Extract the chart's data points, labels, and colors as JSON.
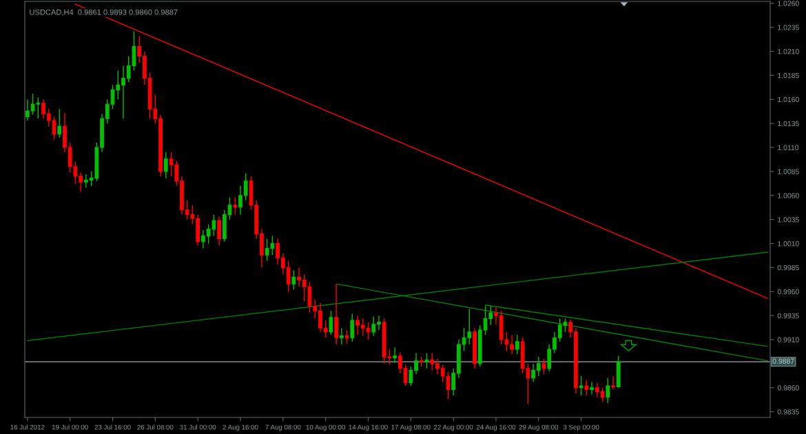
{
  "chart_data": {
    "type": "candlestick",
    "title": "USDCAD,H4  0.9861 0.9893 0.9860 0.9887",
    "categories": [
      "16 Jul 2012",
      null,
      null,
      null,
      null,
      null,
      null,
      null,
      "19 Jul 00:00",
      null,
      null,
      null,
      null,
      null,
      null,
      null,
      "23 Jul 16:00",
      null,
      null,
      null,
      null,
      null,
      null,
      null,
      "26 Jul 08:00",
      null,
      null,
      null,
      null,
      null,
      null,
      null,
      "31 Jul 00:00",
      null,
      null,
      null,
      null,
      null,
      null,
      null,
      "2 Aug 16:00",
      null,
      null,
      null,
      null,
      null,
      null,
      null,
      "7 Aug 08:00",
      null,
      null,
      null,
      null,
      null,
      null,
      null,
      "10 Aug 00:00",
      null,
      null,
      null,
      null,
      null,
      null,
      null,
      "14 Aug 16:00",
      null,
      null,
      null,
      null,
      null,
      null,
      null,
      "17 Aug 08:00",
      null,
      null,
      null,
      null,
      null,
      null,
      null,
      "22 Aug 00:00",
      null,
      null,
      null,
      null,
      null,
      null,
      null,
      "24 Aug 16:00",
      null,
      null,
      null,
      null,
      null,
      null,
      null,
      "29 Aug 08:00",
      null,
      null,
      null,
      null,
      null,
      null,
      null,
      "3 Sep 00:00",
      null,
      null,
      null,
      null,
      null,
      null,
      null,
      null,
      null,
      null,
      null,
      null,
      null,
      null,
      null,
      null,
      null,
      null,
      null,
      null,
      null,
      null,
      null,
      null,
      null,
      null,
      null,
      null,
      null,
      null,
      null,
      null,
      null,
      null,
      null
    ],
    "ohlc": [
      [
        1.0142,
        1.016,
        1.0138,
        1.0148
      ],
      [
        1.0148,
        1.0166,
        1.0144,
        1.0155
      ],
      [
        1.0155,
        1.0162,
        1.014,
        1.0156
      ],
      [
        1.0156,
        1.016,
        1.014,
        1.0145
      ],
      [
        1.0145,
        1.015,
        1.0132,
        1.0138
      ],
      [
        1.0138,
        1.0142,
        1.0118,
        1.0124
      ],
      [
        1.0124,
        1.015,
        1.012,
        1.0132
      ],
      [
        1.0132,
        1.0146,
        1.0105,
        1.011
      ],
      [
        1.011,
        1.0115,
        1.0084,
        1.009
      ],
      [
        1.009,
        1.0095,
        1.0072,
        1.008
      ],
      [
        1.008,
        1.0084,
        1.0064,
        1.0074
      ],
      [
        1.0074,
        1.0082,
        1.0068,
        1.0076
      ],
      [
        1.0076,
        1.0085,
        1.007,
        1.0078
      ],
      [
        1.0078,
        1.0115,
        1.0075,
        1.011
      ],
      [
        1.011,
        1.0145,
        1.0105,
        1.014
      ],
      [
        1.014,
        1.016,
        1.0135,
        1.0155
      ],
      [
        1.0155,
        1.0175,
        1.015,
        1.017
      ],
      [
        1.017,
        1.019,
        1.016,
        1.0175
      ],
      [
        1.0175,
        1.0195,
        1.014,
        1.0182
      ],
      [
        1.0182,
        1.0205,
        1.0178,
        1.0195
      ],
      [
        1.0195,
        1.0231,
        1.019,
        1.0215
      ],
      [
        1.0215,
        1.0226,
        1.0198,
        1.0205
      ],
      [
        1.0205,
        1.021,
        1.0175,
        1.0182
      ],
      [
        1.0182,
        1.0188,
        1.014,
        1.015
      ],
      [
        1.015,
        1.0165,
        1.0135,
        1.014
      ],
      [
        1.014,
        1.0144,
        1.008,
        1.0085
      ],
      [
        1.0085,
        1.0105,
        1.0078,
        1.0098
      ],
      [
        1.0098,
        1.0105,
        1.008,
        1.0092
      ],
      [
        1.0092,
        1.0096,
        1.007,
        1.0075
      ],
      [
        1.0075,
        1.008,
        1.004,
        1.0045
      ],
      [
        1.0045,
        1.0055,
        1.0035,
        1.004
      ],
      [
        1.004,
        1.005,
        1.003,
        1.0036
      ],
      [
        1.0036,
        1.004,
        1.0008,
        1.0012
      ],
      [
        1.0012,
        1.0024,
        1.0005,
        1.0018
      ],
      [
        1.0018,
        1.003,
        1.001,
        1.0025
      ],
      [
        1.0025,
        1.004,
        1.0018,
        1.0034
      ],
      [
        1.0034,
        1.0038,
        1.0008,
        1.0015
      ],
      [
        1.0015,
        1.0045,
        1.0012,
        1.004
      ],
      [
        1.004,
        1.0058,
        1.0035,
        1.005
      ],
      [
        1.005,
        1.0058,
        1.004,
        1.0048
      ],
      [
        1.0048,
        1.007,
        1.004,
        1.006
      ],
      [
        1.006,
        1.0083,
        1.0055,
        1.0075
      ],
      [
        1.0075,
        1.008,
        1.0045,
        1.005
      ],
      [
        1.005,
        1.0055,
        1.0015,
        1.002
      ],
      [
        1.002,
        1.0025,
        0.9985,
        0.9998
      ],
      [
        0.9998,
        1.0015,
        0.9992,
        1.0005
      ],
      [
        1.0005,
        1.0018,
        0.9998,
        1.001
      ],
      [
        1.001,
        1.0015,
        0.9988,
        0.9995
      ],
      [
        0.9995,
        1.0,
        0.9978,
        0.9985
      ],
      [
        0.9985,
        0.9992,
        0.996,
        0.9968
      ],
      [
        0.9968,
        0.9982,
        0.9962,
        0.9975
      ],
      [
        0.9975,
        0.9985,
        0.9965,
        0.9972
      ],
      [
        0.9972,
        0.9978,
        0.995,
        0.9965
      ],
      [
        0.9965,
        0.997,
        0.9938,
        0.9945
      ],
      [
        0.9945,
        0.9952,
        0.9932,
        0.994
      ],
      [
        0.994,
        0.9948,
        0.9918,
        0.9922
      ],
      [
        0.9922,
        0.993,
        0.9912,
        0.9918
      ],
      [
        0.9918,
        0.994,
        0.9915,
        0.9933
      ],
      [
        0.9933,
        0.9968,
        0.9905,
        0.9912
      ],
      [
        0.9912,
        0.9922,
        0.9905,
        0.9914
      ],
      [
        0.9914,
        0.992,
        0.9906,
        0.9912
      ],
      [
        0.9912,
        0.9937,
        0.9908,
        0.993
      ],
      [
        0.993,
        0.9935,
        0.9915,
        0.9925
      ],
      [
        0.9925,
        0.9932,
        0.9914,
        0.9922
      ],
      [
        0.9922,
        0.9928,
        0.991,
        0.9918
      ],
      [
        0.9918,
        0.9934,
        0.9914,
        0.9926
      ],
      [
        0.9926,
        0.9935,
        0.992,
        0.9928
      ],
      [
        0.9928,
        0.9932,
        0.9885,
        0.9892
      ],
      [
        0.9892,
        0.99,
        0.9884,
        0.9891
      ],
      [
        0.9891,
        0.9902,
        0.9886,
        0.9893
      ],
      [
        0.9893,
        0.9897,
        0.9875,
        0.988
      ],
      [
        0.988,
        0.9884,
        0.9862,
        0.9865
      ],
      [
        0.9865,
        0.9882,
        0.9862,
        0.9878
      ],
      [
        0.9878,
        0.9896,
        0.9874,
        0.9888
      ],
      [
        0.9888,
        0.9892,
        0.9882,
        0.9887
      ],
      [
        0.9887,
        0.9896,
        0.988,
        0.9889
      ],
      [
        0.9889,
        0.9896,
        0.9878,
        0.9885
      ],
      [
        0.9885,
        0.989,
        0.9874,
        0.988
      ],
      [
        0.988,
        0.9884,
        0.9866,
        0.9872
      ],
      [
        0.9872,
        0.9876,
        0.9848,
        0.9858
      ],
      [
        0.9858,
        0.988,
        0.9852,
        0.9875
      ],
      [
        0.9875,
        0.991,
        0.987,
        0.9905
      ],
      [
        0.9905,
        0.9922,
        0.9898,
        0.9912
      ],
      [
        0.9912,
        0.9942,
        0.9905,
        0.9918
      ],
      [
        0.9918,
        0.9922,
        0.988,
        0.9885
      ],
      [
        0.9885,
        0.9925,
        0.9882,
        0.992
      ],
      [
        0.992,
        0.9945,
        0.9915,
        0.9932
      ],
      [
        0.9932,
        0.9945,
        0.9925,
        0.9938
      ],
      [
        0.9938,
        0.9944,
        0.9926,
        0.9935
      ],
      [
        0.9935,
        0.994,
        0.9905,
        0.991
      ],
      [
        0.991,
        0.9918,
        0.9898,
        0.9905
      ],
      [
        0.9905,
        0.9915,
        0.9895,
        0.99
      ],
      [
        0.99,
        0.9915,
        0.9895,
        0.9908
      ],
      [
        0.9908,
        0.9912,
        0.9875,
        0.988
      ],
      [
        0.988,
        0.9885,
        0.9843,
        0.987
      ],
      [
        0.987,
        0.9885,
        0.9866,
        0.9878
      ],
      [
        0.9878,
        0.9892,
        0.9872,
        0.9885
      ],
      [
        0.9885,
        0.989,
        0.9874,
        0.988
      ],
      [
        0.988,
        0.9905,
        0.9877,
        0.99
      ],
      [
        0.99,
        0.9918,
        0.9896,
        0.9912
      ],
      [
        0.9912,
        0.9932,
        0.9908,
        0.9925
      ],
      [
        0.9925,
        0.9932,
        0.9918,
        0.9928
      ],
      [
        0.9928,
        0.9931,
        0.9912,
        0.9918
      ],
      [
        0.9918,
        0.9922,
        0.9854,
        0.986
      ],
      [
        0.986,
        0.9872,
        0.9852,
        0.9862
      ],
      [
        0.9862,
        0.9868,
        0.9852,
        0.9858
      ],
      [
        0.9858,
        0.9866,
        0.9853,
        0.986
      ],
      [
        0.986,
        0.9865,
        0.985,
        0.9856
      ],
      [
        0.9856,
        0.986,
        0.9845,
        0.985
      ],
      [
        0.985,
        0.987,
        0.9844,
        0.9862
      ],
      [
        0.9862,
        0.9872,
        0.9858,
        0.9861
      ],
      [
        0.9861,
        0.9893,
        0.986,
        0.9887
      ],
      null,
      null,
      null,
      null,
      null,
      null,
      null,
      null,
      null,
      null,
      null,
      null,
      null,
      null,
      null,
      null,
      null,
      null,
      null,
      null,
      null,
      null,
      null,
      null,
      null,
      null,
      null,
      null
    ],
    "colors": [
      "#00c000",
      "#00c000",
      "#00c000",
      "#ff0000",
      "#ff0000",
      "#ff0000",
      "#00c000",
      "#ff0000",
      "#ff0000",
      "#ff0000",
      "#ff0000",
      "#00c000",
      "#00c000",
      "#00c000",
      "#00c000",
      "#00c000",
      "#00c000",
      "#00c000",
      "#00c000",
      "#00c000",
      "#00c000",
      "#ff0000",
      "#ff0000",
      "#ff0000",
      "#ff0000",
      "#ff0000",
      "#00c000",
      "#ff0000",
      "#ff0000",
      "#ff0000",
      "#ff0000",
      "#ff0000",
      "#ff0000",
      "#00c000",
      "#00c000",
      "#00c000",
      "#ff0000",
      "#00c000",
      "#00c000",
      "#ff0000",
      "#00c000",
      "#00c000",
      "#ff0000",
      "#ff0000",
      "#ff0000",
      "#00c000",
      "#00c000",
      "#ff0000",
      "#ff0000",
      "#ff0000",
      "#00c000",
      "#ff0000",
      "#ff0000",
      "#ff0000",
      "#ff0000",
      "#ff0000",
      "#ff0000",
      "#00c000",
      "#ff0000",
      "#00c000",
      "#ff0000",
      "#00c000",
      "#ff0000",
      "#ff0000",
      "#ff0000",
      "#00c000",
      "#00c000",
      "#ff0000",
      "#ff0000",
      "#00c000",
      "#ff0000",
      "#ff0000",
      "#00c000",
      "#00c000",
      "#ff0000",
      "#00c000",
      "#ff0000",
      "#ff0000",
      "#ff0000",
      "#ff0000",
      "#00c000",
      "#00c000",
      "#00c000",
      "#00c000",
      "#ff0000",
      "#00c000",
      "#00c000",
      "#00c000",
      "#ff0000",
      "#ff0000",
      "#ff0000",
      "#ff0000",
      "#00c000",
      "#ff0000",
      "#ff0000",
      "#00c000",
      "#00c000",
      "#ff0000",
      "#00c000",
      "#00c000",
      "#00c000",
      "#00c000",
      "#ff0000",
      "#ff0000",
      "#00c000",
      "#ff0000",
      "#00c000",
      "#ff0000",
      "#ff0000",
      "#00c000",
      "#ff0000",
      "#00c000",
      null,
      null,
      null,
      null,
      null,
      null,
      null,
      null,
      null,
      null,
      null,
      null,
      null,
      null,
      null,
      null,
      null,
      null,
      null,
      null,
      null,
      null,
      null,
      null,
      null,
      null,
      null,
      null
    ],
    "series": [
      {
        "type": "line",
        "color": "#ff0000",
        "values": [
          null,
          null,
          null,
          null,
          null,
          null,
          null,
          null,
          null,
          1.0259,
          null,
          null,
          null,
          null,
          null,
          null,
          null,
          null,
          null,
          null,
          null,
          null,
          null,
          null,
          null,
          null,
          null,
          null,
          null,
          null,
          null,
          null,
          null,
          null,
          null,
          null,
          null,
          null,
          null,
          null,
          null,
          null,
          null,
          null,
          null,
          null,
          null,
          null,
          null,
          null,
          null,
          null,
          null,
          null,
          null,
          null,
          null,
          null,
          null,
          null,
          null,
          null,
          null,
          null,
          null,
          null,
          null,
          null,
          null,
          null,
          null,
          null,
          null,
          null,
          null,
          null,
          null,
          null,
          null,
          null,
          null,
          null,
          null,
          null,
          null,
          null,
          null,
          null,
          null,
          null,
          null,
          null,
          null,
          null,
          null,
          null,
          null,
          null,
          null,
          null,
          null,
          null,
          null,
          null,
          null,
          null,
          null,
          null,
          null,
          null,
          null,
          null,
          null,
          null,
          null,
          null,
          null,
          null,
          null,
          null,
          null,
          null,
          null,
          null,
          null,
          null,
          null,
          null,
          null,
          null,
          null,
          null,
          null,
          null,
          null,
          null,
          null,
          null,
          null,
          0.9953
        ]
      },
      {
        "type": "line",
        "color": "#008000",
        "values": [
          0.9909,
          null,
          null,
          null,
          null,
          null,
          null,
          null,
          null,
          null,
          null,
          null,
          null,
          null,
          null,
          null,
          null,
          null,
          null,
          null,
          null,
          null,
          null,
          null,
          null,
          null,
          null,
          null,
          null,
          null,
          null,
          null,
          null,
          null,
          null,
          null,
          null,
          null,
          null,
          null,
          null,
          null,
          null,
          null,
          null,
          null,
          null,
          null,
          null,
          null,
          null,
          null,
          null,
          null,
          null,
          null,
          null,
          null,
          null,
          null,
          null,
          null,
          null,
          null,
          null,
          null,
          null,
          null,
          null,
          null,
          null,
          null,
          null,
          null,
          null,
          null,
          null,
          null,
          null,
          null,
          null,
          null,
          null,
          null,
          null,
          null,
          null,
          null,
          null,
          null,
          null,
          null,
          null,
          null,
          null,
          null,
          null,
          null,
          null,
          null,
          null,
          null,
          null,
          null,
          null,
          null,
          null,
          null,
          null,
          null,
          null,
          null,
          null,
          null,
          null,
          null,
          null,
          null,
          null,
          null,
          null,
          null,
          null,
          null,
          null,
          null,
          null,
          null,
          null,
          null,
          null,
          null,
          null,
          null,
          null,
          null,
          null,
          null,
          null,
          1.0001
        ]
      },
      {
        "type": "line",
        "color": "#008000",
        "values": [
          null,
          null,
          null,
          null,
          null,
          null,
          null,
          null,
          null,
          null,
          null,
          null,
          null,
          null,
          null,
          null,
          null,
          null,
          null,
          null,
          null,
          null,
          null,
          null,
          null,
          null,
          null,
          null,
          null,
          null,
          null,
          null,
          null,
          null,
          null,
          null,
          null,
          null,
          null,
          null,
          null,
          null,
          null,
          null,
          null,
          null,
          null,
          null,
          null,
          null,
          null,
          null,
          null,
          null,
          null,
          null,
          null,
          null,
          0.9968,
          null,
          null,
          null,
          null,
          null,
          null,
          null,
          null,
          null,
          null,
          null,
          null,
          null,
          null,
          null,
          null,
          null,
          null,
          null,
          null,
          null,
          null,
          null,
          null,
          null,
          null,
          null,
          null,
          null,
          null,
          null,
          null,
          null,
          null,
          null,
          null,
          null,
          null,
          null,
          null,
          null,
          null,
          null,
          null,
          null,
          null,
          null,
          null,
          null,
          null,
          null,
          null,
          null,
          null,
          null,
          null,
          null,
          null,
          null,
          null,
          null,
          null,
          null,
          null,
          null,
          null,
          null,
          null,
          null,
          null,
          null,
          null,
          null,
          null,
          null,
          null,
          null,
          null,
          null,
          null,
          0.9888
        ]
      },
      {
        "type": "line",
        "color": "#008000",
        "values": [
          null,
          null,
          null,
          null,
          null,
          null,
          null,
          null,
          null,
          null,
          null,
          null,
          null,
          null,
          null,
          null,
          null,
          null,
          null,
          null,
          null,
          null,
          null,
          null,
          null,
          null,
          null,
          null,
          null,
          null,
          null,
          null,
          null,
          null,
          null,
          null,
          null,
          null,
          null,
          null,
          null,
          null,
          null,
          null,
          null,
          null,
          null,
          null,
          null,
          null,
          null,
          null,
          null,
          null,
          null,
          null,
          null,
          null,
          null,
          null,
          null,
          null,
          null,
          null,
          null,
          null,
          null,
          null,
          null,
          null,
          null,
          null,
          null,
          null,
          null,
          null,
          null,
          null,
          null,
          null,
          null,
          null,
          null,
          null,
          null,
          null,
          0.9946,
          null,
          null,
          null,
          null,
          null,
          null,
          null,
          null,
          null,
          null,
          null,
          null,
          null,
          null,
          null,
          null,
          null,
          null,
          null,
          null,
          null,
          null,
          null,
          null,
          null,
          null,
          null,
          null,
          null,
          null,
          null,
          null,
          null,
          null,
          null,
          null,
          null,
          null,
          null,
          null,
          null,
          null,
          null,
          null,
          null,
          null,
          null,
          null,
          null,
          null,
          null,
          null,
          0.9903
        ]
      }
    ],
    "ref_lines": [
      {
        "axis": "y",
        "value": 0.9887,
        "label": "0.9887",
        "color": "#a0a8b0"
      }
    ],
    "ylim": [
      0.9829,
      1.0262
    ],
    "yticks": [
      {
        "value": 1.026,
        "label": "1.0260"
      },
      {
        "value": 1.0235,
        "label": "1.0235"
      },
      {
        "value": 1.021,
        "label": "1.0210"
      },
      {
        "value": 1.0185,
        "label": "1.0185"
      },
      {
        "value": 1.016,
        "label": "1.0160"
      },
      {
        "value": 1.0135,
        "label": "1.0135"
      },
      {
        "value": 1.011,
        "label": "1.0110"
      },
      {
        "value": 1.0085,
        "label": "1.0085"
      },
      {
        "value": 1.006,
        "label": "1.0060"
      },
      {
        "value": 1.0035,
        "label": "1.0035"
      },
      {
        "value": 1.001,
        "label": "1.0010"
      },
      {
        "value": 0.9985,
        "label": "0.9985"
      },
      {
        "value": 0.996,
        "label": "0.9960"
      },
      {
        "value": 0.9935,
        "label": "0.9935"
      },
      {
        "value": 0.991,
        "label": "0.9910"
      },
      {
        "value": 0.986,
        "label": "0.9860"
      },
      {
        "value": 0.9835,
        "label": "0.9835"
      }
    ]
  }
}
